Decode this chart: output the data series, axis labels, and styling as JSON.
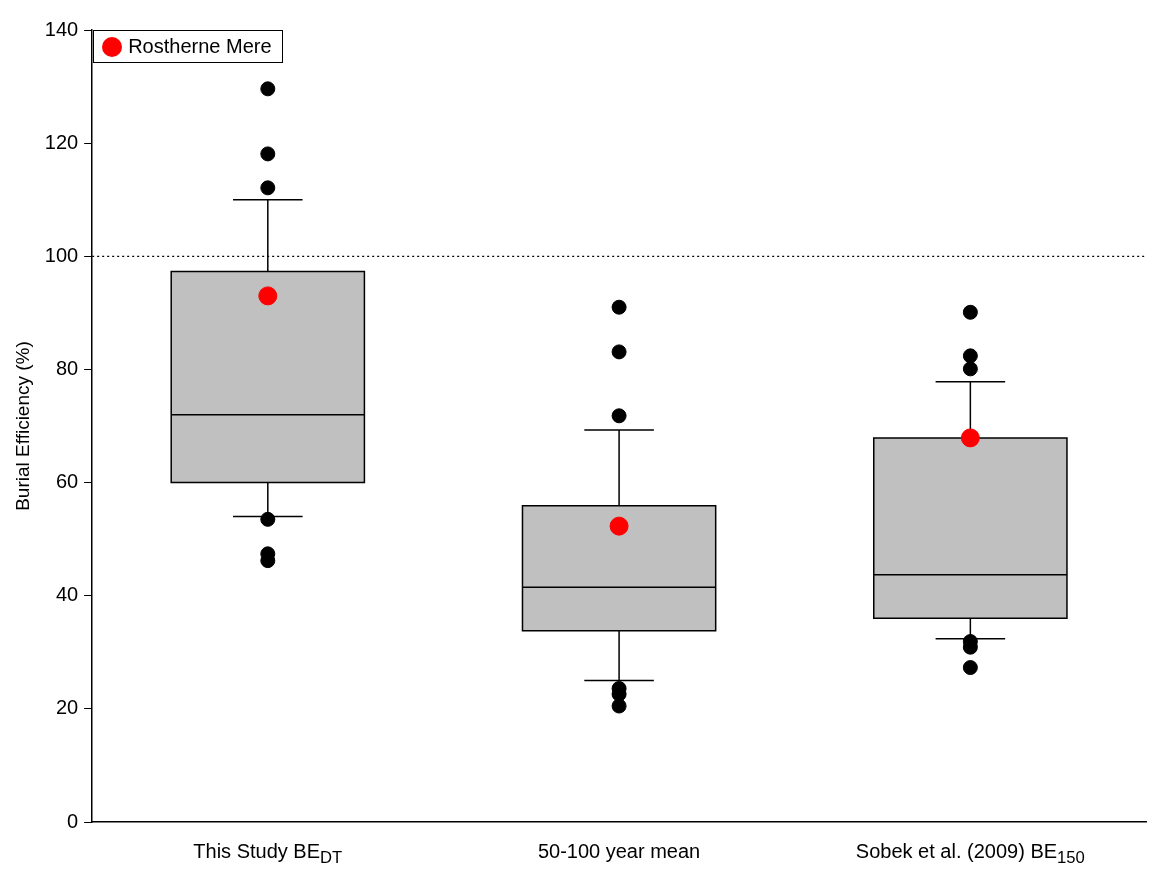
{
  "chart_data": {
    "type": "box",
    "ylabel": "Burial Efficiency (%)",
    "categories": [
      "This Study BE$_{DT}$",
      "50-100 year mean",
      "Sobek et al. (2009) BE$_{150}$"
    ],
    "ylim": [
      0,
      140
    ],
    "yticks": [
      0,
      20,
      40,
      60,
      80,
      100,
      120,
      140
    ],
    "grid": false,
    "legend": "top left",
    "ref_lines": [
      {
        "axis": "y",
        "value": 100,
        "color": "#000000",
        "line_style": "dotted"
      }
    ],
    "series": [
      {
        "type": "box",
        "color": "#c0c0c0",
        "boxes": [
          {
            "low": 54,
            "q1": 60,
            "median": 72,
            "q3": 97.3,
            "high": 110,
            "outliers": [
              129.6,
              118.1,
              112.1,
              53.5,
              47.4,
              46.2
            ]
          },
          {
            "low": 25,
            "q1": 33.8,
            "median": 41.5,
            "q3": 55.9,
            "high": 69.3,
            "outliers": [
              91,
              83.1,
              71.8,
              23.6,
              22.6,
              20.5
            ]
          },
          {
            "low": 32.4,
            "q1": 36,
            "median": 43.7,
            "q3": 67.9,
            "high": 77.8,
            "outliers": [
              90.1,
              82.4,
              80.1,
              31.9,
              30.9,
              27.3
            ]
          }
        ]
      },
      {
        "type": "scatter",
        "name": "Rostherne Mere",
        "color": "#ff0000",
        "marker": "circle",
        "x": [
          "This Study BE$_{DT}$",
          "50-100 year mean",
          "Sobek et al. (2009) BE$_{150}$"
        ],
        "values": [
          93,
          52.3,
          67.9
        ]
      }
    ]
  }
}
